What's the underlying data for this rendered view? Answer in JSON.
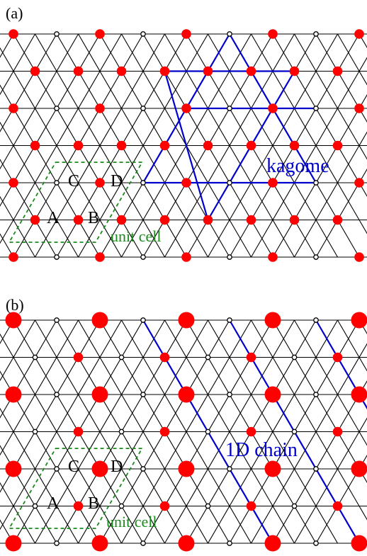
{
  "panels": [
    {
      "label": "(a)",
      "site_labels": [
        "A",
        "B",
        "C",
        "D"
      ],
      "annotation": "kagome",
      "cell_label": "unit cell"
    },
    {
      "label": "(b)",
      "site_labels": [
        "A",
        "B",
        "C",
        "D"
      ],
      "annotation": "1D chain",
      "cell_label": "unit cell"
    }
  ],
  "colors": {
    "lattice": "#000000",
    "filled_site": "#ff0000",
    "open_site_fill": "#ffffff",
    "highlight": "#0000cc",
    "unit_cell": "#1a8a1a"
  }
}
